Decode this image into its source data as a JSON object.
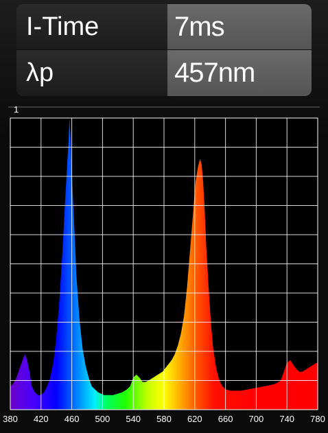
{
  "readings": [
    {
      "label": "I-Time",
      "value": "7ms"
    },
    {
      "label": "λp",
      "value": "457nm"
    }
  ],
  "chart_data": {
    "type": "area",
    "ymax_label": "1",
    "xlim": [
      380,
      780
    ],
    "ylim": [
      0,
      1
    ],
    "grid": true,
    "x_ticks": [
      380,
      420,
      460,
      500,
      540,
      580,
      620,
      660,
      700,
      740,
      780
    ],
    "x": [
      380,
      384,
      388,
      392,
      396,
      399,
      402,
      405,
      408,
      412,
      416,
      420,
      424,
      428,
      432,
      436,
      440,
      444,
      448,
      451,
      454,
      456,
      457,
      458,
      460,
      463,
      466,
      470,
      474,
      478,
      482,
      486,
      490,
      494,
      498,
      502,
      508,
      514,
      520,
      526,
      532,
      536,
      540,
      544,
      548,
      552,
      556,
      560,
      566,
      572,
      578,
      584,
      590,
      594,
      598,
      602,
      606,
      610,
      614,
      618,
      621,
      624,
      627,
      629,
      631,
      633,
      635,
      638,
      641,
      644,
      648,
      652,
      656,
      660,
      666,
      672,
      680,
      690,
      700,
      710,
      720,
      726,
      732,
      736,
      740,
      744,
      748,
      752,
      756,
      760,
      766,
      772,
      778,
      780
    ],
    "y": [
      0.08,
      0.09,
      0.11,
      0.14,
      0.17,
      0.19,
      0.17,
      0.13,
      0.08,
      0.06,
      0.05,
      0.05,
      0.06,
      0.08,
      0.11,
      0.16,
      0.25,
      0.38,
      0.55,
      0.7,
      0.84,
      0.93,
      1.0,
      0.95,
      0.82,
      0.64,
      0.46,
      0.31,
      0.21,
      0.15,
      0.11,
      0.08,
      0.07,
      0.06,
      0.055,
      0.05,
      0.05,
      0.05,
      0.055,
      0.06,
      0.07,
      0.08,
      0.11,
      0.12,
      0.11,
      0.095,
      0.095,
      0.1,
      0.11,
      0.12,
      0.13,
      0.15,
      0.17,
      0.19,
      0.22,
      0.26,
      0.32,
      0.42,
      0.55,
      0.68,
      0.78,
      0.83,
      0.86,
      0.84,
      0.78,
      0.68,
      0.56,
      0.42,
      0.3,
      0.21,
      0.14,
      0.1,
      0.08,
      0.07,
      0.065,
      0.065,
      0.065,
      0.07,
      0.075,
      0.08,
      0.085,
      0.09,
      0.1,
      0.13,
      0.16,
      0.17,
      0.155,
      0.14,
      0.13,
      0.13,
      0.14,
      0.15,
      0.16,
      0.16
    ]
  }
}
